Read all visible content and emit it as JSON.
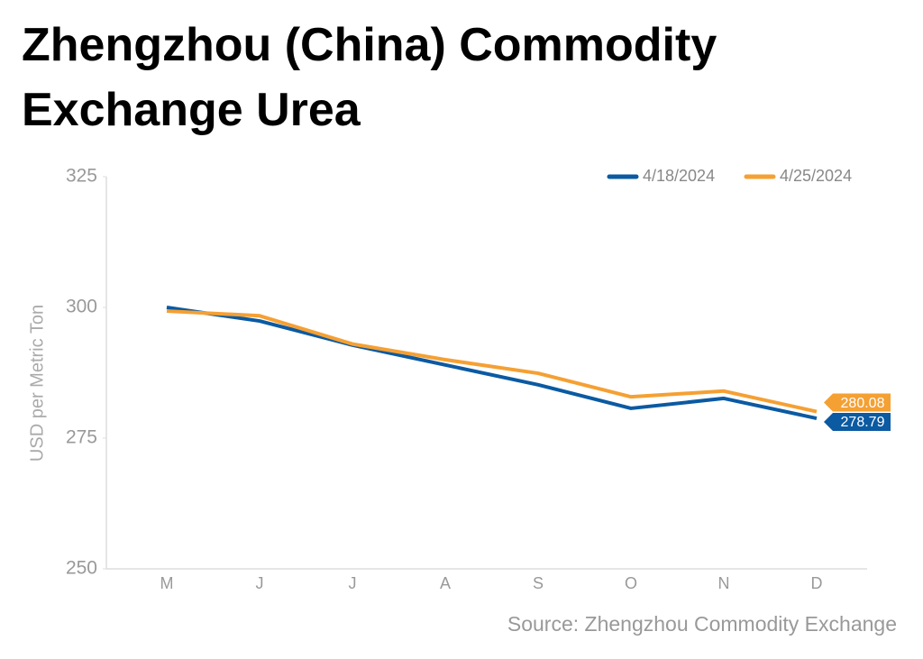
{
  "chart_data": {
    "type": "line",
    "title": "Zhengzhou (China) Commodity Exchange Urea",
    "y_label": "USD per Metric Ton",
    "source": "Source: Zhengzhou Commodity Exchange",
    "categories": [
      "M",
      "J",
      "J",
      "A",
      "S",
      "O",
      "N",
      "D"
    ],
    "series": [
      {
        "name": "4/18/2024",
        "color": "#0b5aa2",
        "values": [
          300.0,
          297.4,
          292.8,
          289.0,
          285.2,
          280.7,
          282.6,
          278.79
        ]
      },
      {
        "name": "4/25/2024",
        "color": "#f5a033",
        "values": [
          299.3,
          298.4,
          293.0,
          290.0,
          287.4,
          282.9,
          284.0,
          280.08
        ]
      }
    ],
    "ylim": [
      250,
      325
    ],
    "yticks": [
      250,
      275,
      300,
      325
    ],
    "legend": "top-right"
  }
}
